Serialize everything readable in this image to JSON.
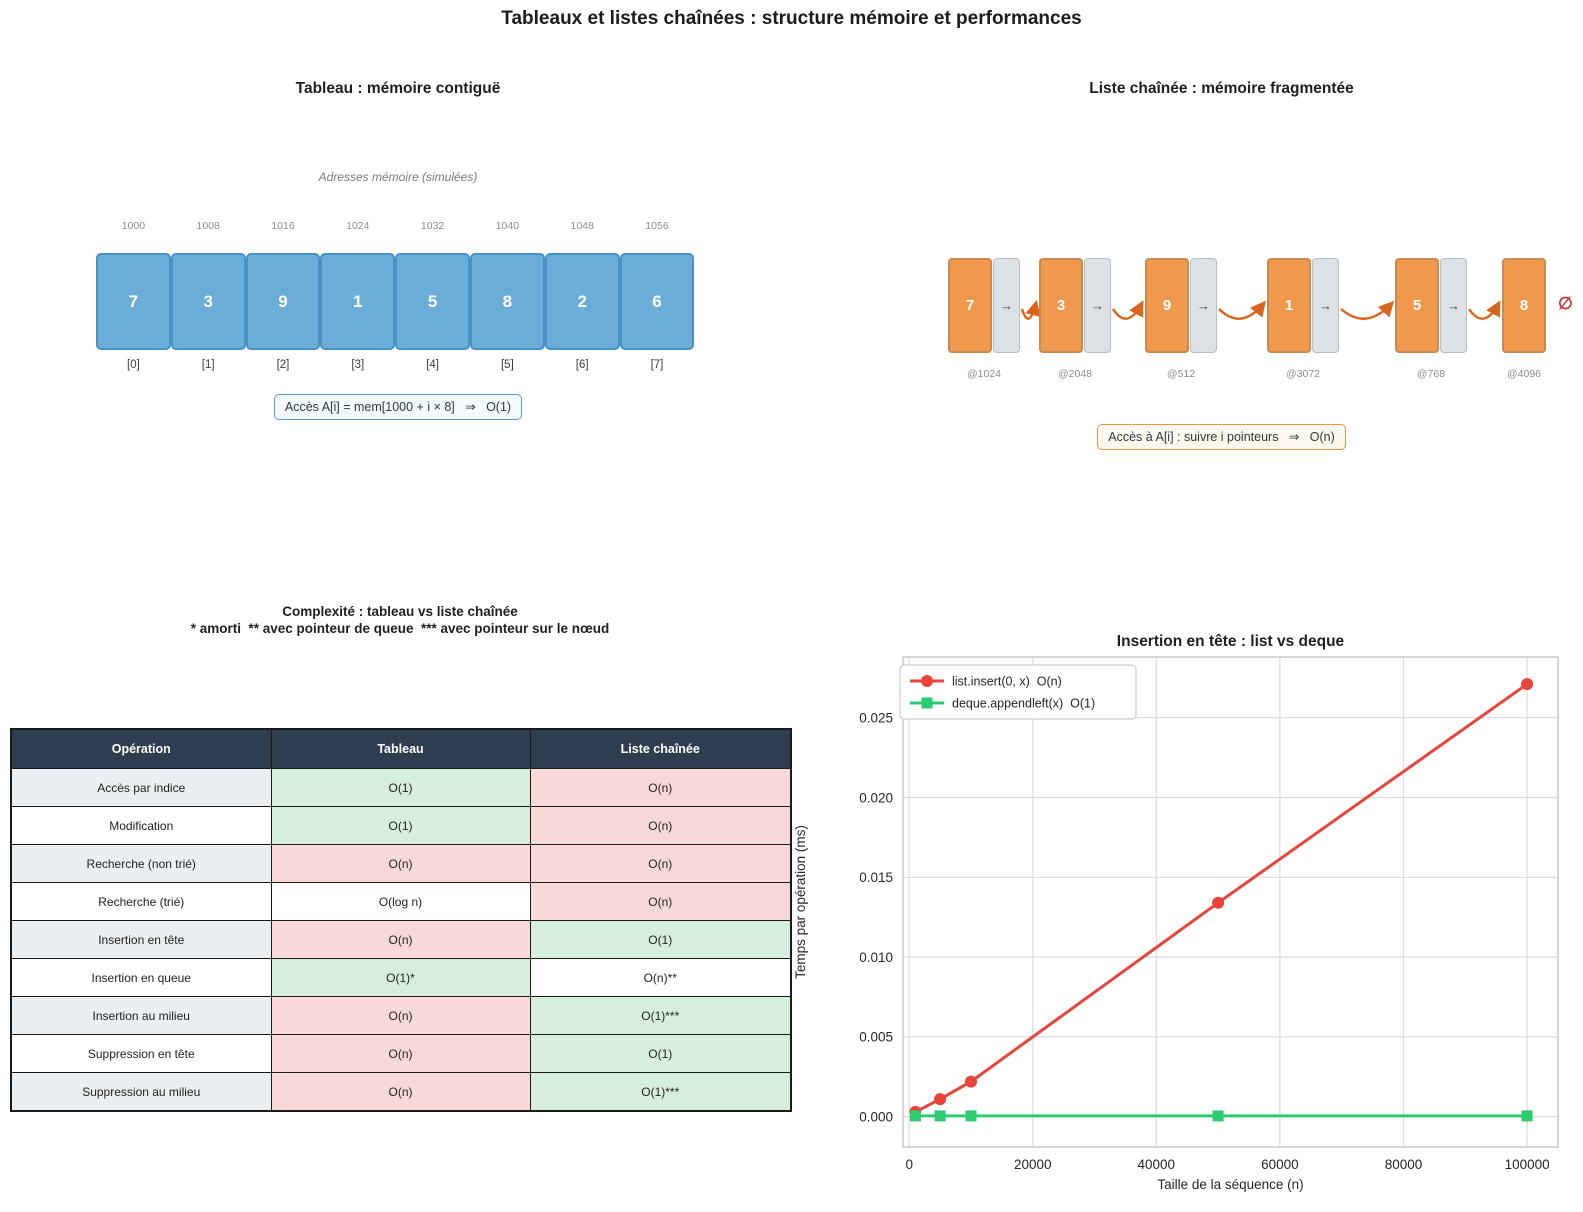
{
  "figure": {
    "title": "Tableaux et listes chaînées : structure mémoire et performances"
  },
  "array_panel": {
    "title": "Tableau : mémoire contiguë",
    "subtitle": "Adresses mémoire (simulées)",
    "cells": [
      {
        "address": "1000",
        "value": "7",
        "index": "[0]"
      },
      {
        "address": "1008",
        "value": "3",
        "index": "[1]"
      },
      {
        "address": "1016",
        "value": "9",
        "index": "[2]"
      },
      {
        "address": "1024",
        "value": "1",
        "index": "[3]"
      },
      {
        "address": "1032",
        "value": "5",
        "index": "[4]"
      },
      {
        "address": "1040",
        "value": "8",
        "index": "[5]"
      },
      {
        "address": "1048",
        "value": "2",
        "index": "[6]"
      },
      {
        "address": "1056",
        "value": "6",
        "index": "[7]"
      }
    ],
    "note": "Accès A[i] = mem[1000 + i × 8]   ⇒   O(1)",
    "colors": {
      "cell_fill": "#6badd6",
      "cell_border": "#4592c6",
      "note_border": "#54a0d4",
      "note_fill": "#f4f9fd"
    }
  },
  "list_panel": {
    "title": "Liste chaînée : mémoire fragmentée",
    "nodes": [
      {
        "value": "7",
        "address": "@1024"
      },
      {
        "value": "3",
        "address": "@2048"
      },
      {
        "value": "9",
        "address": "@512"
      },
      {
        "value": "1",
        "address": "@3072"
      },
      {
        "value": "5",
        "address": "@768"
      },
      {
        "value": "8",
        "address": "@4096"
      }
    ],
    "pointer_glyph": "→",
    "null_symbol": "∅",
    "note": "Accès à A[i] : suivre i pointeurs   ⇒   O(n)",
    "colors": {
      "node_fill": "#f0994d",
      "node_border": "#c98a52",
      "ptr_fill": "#dde1e4",
      "ptr_border": "#b8bec3",
      "arrow": "#d9641e",
      "null": "#cc3333",
      "note_border": "#e8963f",
      "note_fill": "#fdf8ee"
    }
  },
  "table_panel": {
    "title_line1": "Complexité : tableau vs liste chaînée",
    "title_line2": "* amorti  ** avec pointeur de queue  *** avec pointeur sur le nœud",
    "headers": [
      "Opération",
      "Tableau",
      "Liste chaînée"
    ],
    "rows": [
      {
        "op": "Accès par indice",
        "tableau": {
          "text": "O(1)",
          "tone": "good"
        },
        "liste": {
          "text": "O(n)",
          "tone": "bad"
        }
      },
      {
        "op": "Modification",
        "tableau": {
          "text": "O(1)",
          "tone": "good"
        },
        "liste": {
          "text": "O(n)",
          "tone": "bad"
        }
      },
      {
        "op": "Recherche (non trié)",
        "tableau": {
          "text": "O(n)",
          "tone": "bad"
        },
        "liste": {
          "text": "O(n)",
          "tone": "bad"
        }
      },
      {
        "op": "Recherche (trié)",
        "tableau": {
          "text": "O(log n)",
          "tone": "neutral"
        },
        "liste": {
          "text": "O(n)",
          "tone": "bad"
        }
      },
      {
        "op": "Insertion en tête",
        "tableau": {
          "text": "O(n)",
          "tone": "bad"
        },
        "liste": {
          "text": "O(1)",
          "tone": "good"
        }
      },
      {
        "op": "Insertion en queue",
        "tableau": {
          "text": "O(1)*",
          "tone": "good"
        },
        "liste": {
          "text": "O(n)**",
          "tone": "neutral"
        }
      },
      {
        "op": "Insertion au milieu",
        "tableau": {
          "text": "O(n)",
          "tone": "bad"
        },
        "liste": {
          "text": "O(1)***",
          "tone": "good"
        }
      },
      {
        "op": "Suppression en tête",
        "tableau": {
          "text": "O(n)",
          "tone": "bad"
        },
        "liste": {
          "text": "O(1)",
          "tone": "good"
        }
      },
      {
        "op": "Suppression au milieu",
        "tableau": {
          "text": "O(n)",
          "tone": "bad"
        },
        "liste": {
          "text": "O(1)***",
          "tone": "good"
        }
      }
    ],
    "colors": {
      "header_bg": "#2e3d4f",
      "good": "#d6efdc",
      "bad": "#f9d9d7",
      "row_alt": "#ebeff1"
    }
  },
  "chart_data": [
    {
      "type": "line",
      "title": "Insertion en tête : list vs deque",
      "xlabel": "Taille de la séquence (n)",
      "ylabel": "Temps par opération (ms)",
      "x": [
        1000,
        5000,
        10000,
        50000,
        100000
      ],
      "series": [
        {
          "name": "list.insert(0, x)  O(n)",
          "color": "#e8443b",
          "marker": "circle",
          "values": [
            0.0003,
            0.0011,
            0.0022,
            0.0134,
            0.0271
          ]
        },
        {
          "name": "deque.appendleft(x)  O(1)",
          "color": "#2ecc71",
          "marker": "square",
          "values": [
            5e-05,
            5e-05,
            5e-05,
            5e-05,
            5e-05
          ]
        }
      ],
      "xticks": [
        0,
        20000,
        40000,
        60000,
        80000,
        100000
      ],
      "yticks": [
        0,
        0.005,
        0.01,
        0.015,
        0.02,
        0.025
      ],
      "xlim": [
        -1000,
        105000
      ],
      "ylim": [
        -0.0019,
        0.0288
      ],
      "grid": true,
      "legend_position": "upper left"
    },
    {
      "type": "table",
      "title": "Complexité : tableau vs liste chaînée",
      "columns": [
        "Opération",
        "Tableau",
        "Liste chaînée"
      ],
      "rows": [
        [
          "Accès par indice",
          "O(1)",
          "O(n)"
        ],
        [
          "Modification",
          "O(1)",
          "O(n)"
        ],
        [
          "Recherche (non trié)",
          "O(n)",
          "O(n)"
        ],
        [
          "Recherche (trié)",
          "O(log n)",
          "O(n)"
        ],
        [
          "Insertion en tête",
          "O(n)",
          "O(1)"
        ],
        [
          "Insertion en queue",
          "O(1)*",
          "O(n)**"
        ],
        [
          "Insertion au milieu",
          "O(n)",
          "O(1)***"
        ],
        [
          "Suppression en tête",
          "O(n)",
          "O(1)"
        ],
        [
          "Suppression au milieu",
          "O(n)",
          "O(1)***"
        ]
      ]
    }
  ]
}
